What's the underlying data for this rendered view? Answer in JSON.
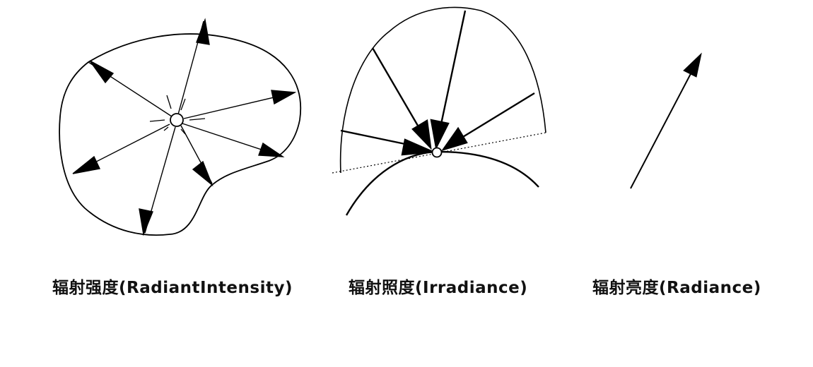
{
  "captions": {
    "intensity": "辐射强度(RadiantIntensity)",
    "irradiance": "辐射照度(Irradiance)",
    "radiance": "辐射亮度(Radiance)"
  },
  "colors": {
    "stroke": "#000000",
    "background": "#ffffff"
  }
}
